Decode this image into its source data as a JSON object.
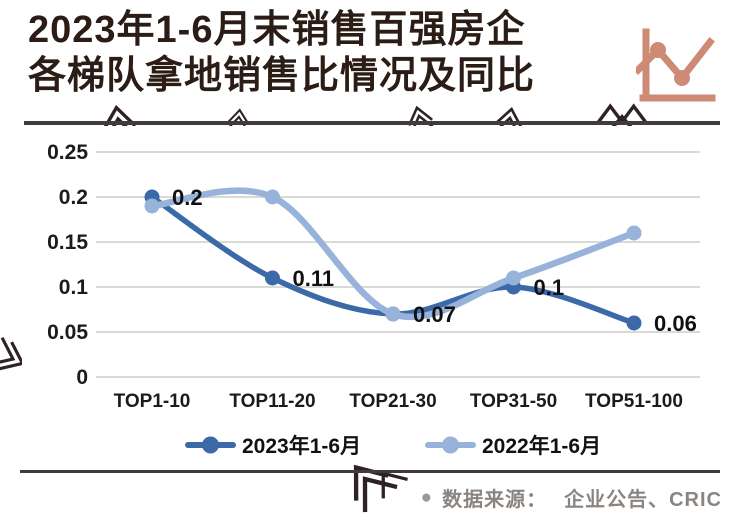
{
  "title": {
    "line1": "2023年1-6月末销售百强房企",
    "line2": "各梯队拿地销售比情况及同比"
  },
  "source": {
    "bullet": "●",
    "label": "数据来源：",
    "value": "企业公告、CRIC"
  },
  "colors": {
    "title_text": "#2b1c15",
    "accent_salmon": "#cd8a75",
    "rule": "#423b3e",
    "grid": "#d9d9d9",
    "axis_text": "#1b1b1b",
    "label_text": "#111111",
    "source_text": "#8b8581",
    "source_bullet": "#9a9a9a",
    "watermark": "#2e2225",
    "series_colors": [
      "#3c6aa8",
      "#98b3d9"
    ]
  },
  "chart_data": {
    "type": "line",
    "title": "2023年1-6月末销售百强房企各梯队拿地销售比情况及同比",
    "categories": [
      "TOP1-10",
      "TOP11-20",
      "TOP21-30",
      "TOP31-50",
      "TOP51-100"
    ],
    "series": [
      {
        "name": "2023年1-6月",
        "values": [
          0.2,
          0.11,
          0.07,
          0.1,
          0.06
        ]
      },
      {
        "name": "2022年1-6月",
        "values": [
          0.19,
          0.2,
          0.07,
          0.11,
          0.16
        ]
      }
    ],
    "point_labels": [
      "0.2",
      "0.11",
      "0.07",
      "0.1",
      "0.06"
    ],
    "point_labels_series": "2023年1-6月",
    "y_ticks": [
      "0",
      "0.05",
      "0.1",
      "0.15",
      "0.2",
      "0.25"
    ],
    "ylim": [
      0,
      0.25
    ],
    "grid": true,
    "legend_position": "bottom",
    "xlabel": "",
    "ylabel": ""
  }
}
